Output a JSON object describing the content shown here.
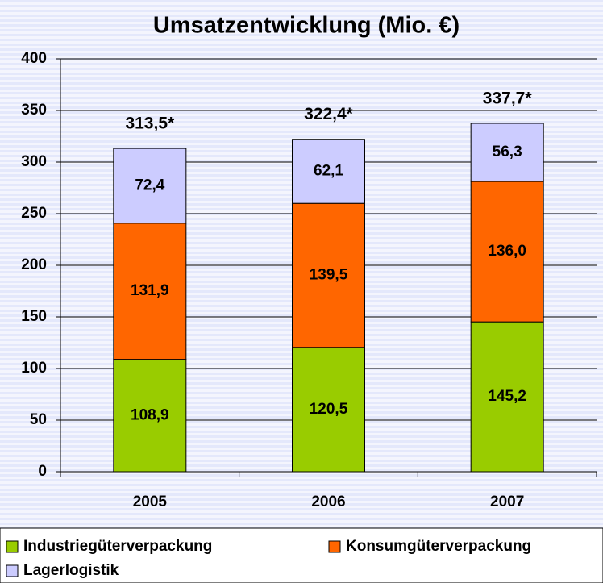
{
  "chart_data": {
    "type": "stacked_bar",
    "title": "Umsatzentwicklung (Mio. €)",
    "categories": [
      "2005",
      "2006",
      "2007"
    ],
    "series": [
      {
        "name": "Industriegüterverpackung",
        "color": "#99cc00",
        "values": [
          108.9,
          120.5,
          145.2
        ],
        "value_labels": [
          "108,9",
          "120,5",
          "145,2"
        ]
      },
      {
        "name": "Konsumgüterverpackung",
        "color": "#ff6600",
        "values": [
          131.9,
          139.5,
          136.0
        ],
        "value_labels": [
          "131,9",
          "139,5",
          "136,0"
        ]
      },
      {
        "name": "Lagerlogistik",
        "color": "#ccccff",
        "values": [
          72.4,
          62.1,
          56.3
        ],
        "value_labels": [
          "72,4",
          "62,1",
          "56,3"
        ]
      }
    ],
    "totals": [
      313.5,
      322.4,
      337.7
    ],
    "total_labels": [
      "313,5*",
      "322,4*",
      "337,7*"
    ],
    "ylim": [
      0,
      400
    ],
    "yticks": [
      0,
      50,
      100,
      150,
      200,
      250,
      300,
      350,
      400
    ],
    "grid": true
  }
}
